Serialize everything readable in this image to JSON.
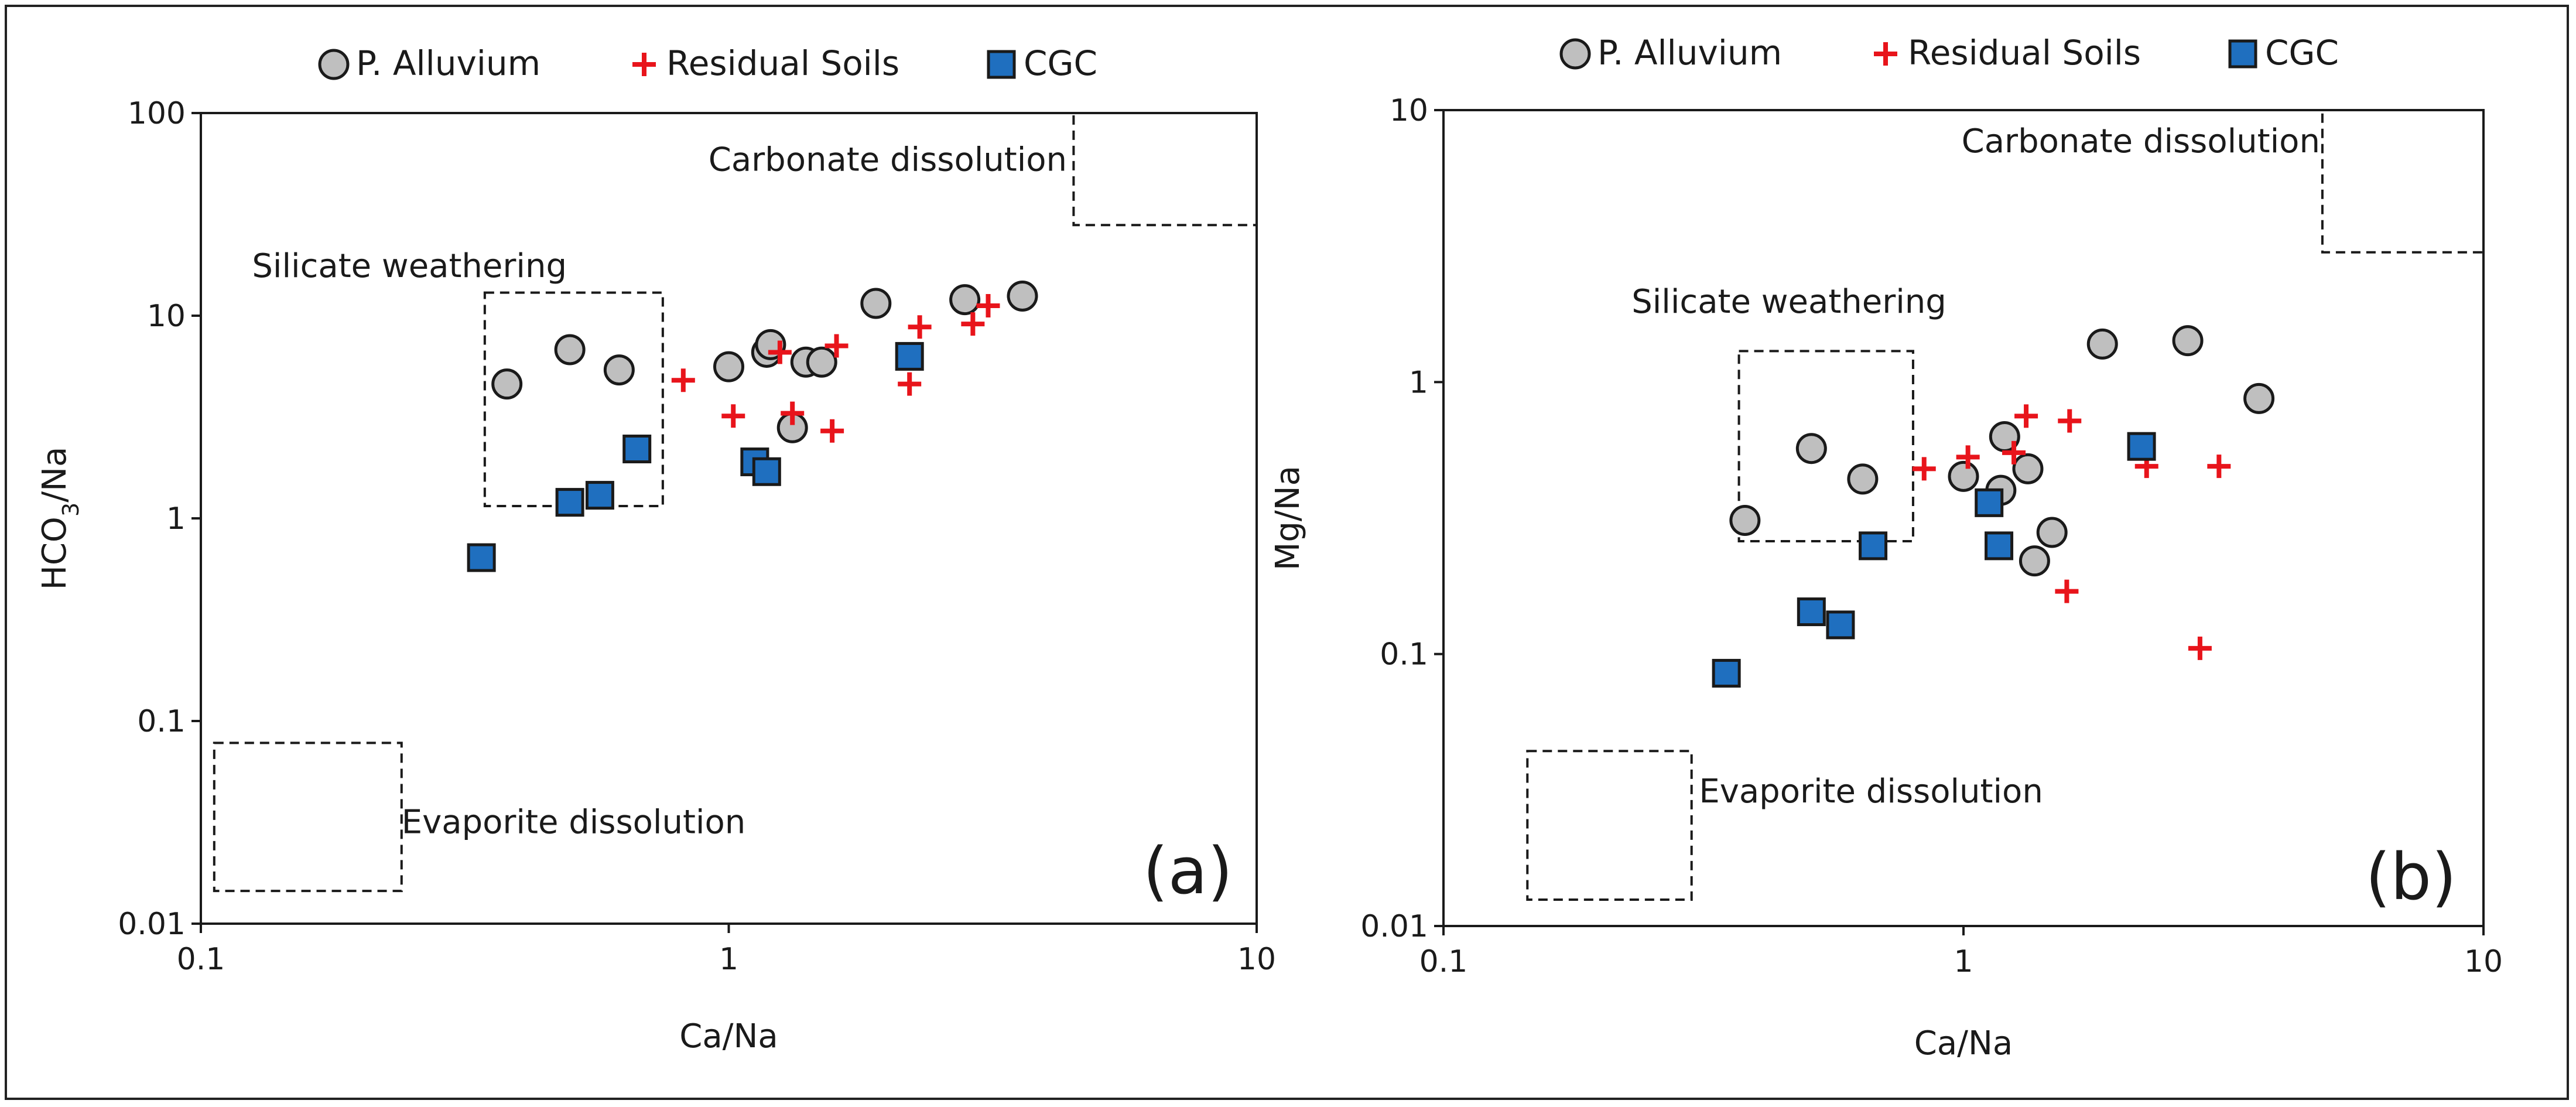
{
  "chart_data": [
    {
      "type": "scatter",
      "panel_label": "(a)",
      "xlabel": "Ca/Na",
      "ylabel_main": "HCO",
      "ylabel_sub": "3",
      "ylabel_tail": "/Na",
      "xscale": "log",
      "yscale": "log",
      "xlim": [
        0.1,
        10
      ],
      "ylim": [
        0.01,
        100
      ],
      "x_ticks": [
        {
          "value": 0.1,
          "label": "0.1"
        },
        {
          "value": 1,
          "label": "1"
        },
        {
          "value": 10,
          "label": "10"
        }
      ],
      "y_ticks": [
        {
          "value": 0.01,
          "label": "0.01"
        },
        {
          "value": 0.1,
          "label": "0.1"
        },
        {
          "value": 1,
          "label": "1"
        },
        {
          "value": 10,
          "label": "10"
        },
        {
          "value": 100,
          "label": "100"
        }
      ],
      "legend_position": "top-center",
      "series": [
        {
          "name": "P. Alluvium",
          "marker": "circle",
          "color": "#bfbfbf",
          "edge": "#1a1a1a",
          "points": [
            [
              0.38,
              4.6
            ],
            [
              0.5,
              6.8
            ],
            [
              0.62,
              5.4
            ],
            [
              1.0,
              5.6
            ],
            [
              1.18,
              6.6
            ],
            [
              1.2,
              7.2
            ],
            [
              1.32,
              2.8
            ],
            [
              1.4,
              5.9
            ],
            [
              1.5,
              5.9
            ],
            [
              1.9,
              11.5
            ],
            [
              2.8,
              12
            ],
            [
              3.6,
              12.5
            ]
          ]
        },
        {
          "name": "Residual Soils",
          "marker": "plus",
          "color": "#e8141b",
          "points": [
            [
              0.82,
              4.8
            ],
            [
              1.02,
              3.2
            ],
            [
              1.25,
              6.6
            ],
            [
              1.32,
              3.3
            ],
            [
              1.57,
              2.7
            ],
            [
              1.6,
              7.1
            ],
            [
              2.2,
              4.6
            ],
            [
              2.3,
              8.8
            ],
            [
              2.9,
              9.1
            ],
            [
              3.1,
              11.2
            ]
          ]
        },
        {
          "name": "CGC",
          "marker": "square",
          "color": "#1f6fbf",
          "edge": "#1a1a1a",
          "points": [
            [
              0.34,
              0.64
            ],
            [
              0.5,
              1.2
            ],
            [
              0.57,
              1.3
            ],
            [
              0.67,
              2.2
            ],
            [
              1.12,
              1.9
            ],
            [
              1.18,
              1.7
            ],
            [
              2.2,
              6.3
            ]
          ]
        }
      ],
      "annotations": [
        {
          "text": "Carbonate dissolution",
          "x": 2.0,
          "y": 52,
          "anchor": "middle"
        },
        {
          "text": "Silicate weathering",
          "x": 0.125,
          "y": 15.5,
          "anchor": "start"
        },
        {
          "text": "Evaporite dissolution",
          "x": 0.24,
          "y": 0.028,
          "anchor": "start"
        }
      ],
      "regions": [
        {
          "name": "carbonate-dissolution-box",
          "x": [
            4.5,
            10
          ],
          "y": [
            28,
            100
          ]
        },
        {
          "name": "silicate-weathering-box",
          "x": [
            0.345,
            0.75
          ],
          "y": [
            1.15,
            13
          ]
        },
        {
          "name": "evaporite-dissolution-box",
          "x": [
            0.106,
            0.24
          ],
          "y": [
            0.0145,
            0.078
          ]
        }
      ]
    },
    {
      "type": "scatter",
      "panel_label": "(b)",
      "xlabel": "Ca/Na",
      "ylabel_main": "Mg/Na",
      "ylabel_sub": "",
      "ylabel_tail": "",
      "xscale": "log",
      "yscale": "log",
      "xlim": [
        0.1,
        10
      ],
      "ylim": [
        0.01,
        10
      ],
      "x_ticks": [
        {
          "value": 0.1,
          "label": "0.1"
        },
        {
          "value": 1,
          "label": "1"
        },
        {
          "value": 10,
          "label": "10"
        }
      ],
      "y_ticks": [
        {
          "value": 0.01,
          "label": "0.01"
        },
        {
          "value": 0.1,
          "label": "0.1"
        },
        {
          "value": 1,
          "label": "1"
        },
        {
          "value": 10,
          "label": "10"
        }
      ],
      "legend_position": "top-center",
      "series": [
        {
          "name": "P. Alluvium",
          "marker": "circle",
          "color": "#bfbfbf",
          "edge": "#1a1a1a",
          "points": [
            [
              0.38,
              0.31
            ],
            [
              0.51,
              0.57
            ],
            [
              0.64,
              0.44
            ],
            [
              1.0,
              0.45
            ],
            [
              1.18,
              0.4
            ],
            [
              1.2,
              0.63
            ],
            [
              1.33,
              0.48
            ],
            [
              1.37,
              0.22
            ],
            [
              1.48,
              0.28
            ],
            [
              1.85,
              1.38
            ],
            [
              2.7,
              1.42
            ],
            [
              3.7,
              0.87
            ]
          ]
        },
        {
          "name": "Residual Soils",
          "marker": "plus",
          "color": "#e8141b",
          "points": [
            [
              0.84,
              0.48
            ],
            [
              1.02,
              0.53
            ],
            [
              1.25,
              0.55
            ],
            [
              1.32,
              0.75
            ],
            [
              1.58,
              0.17
            ],
            [
              1.6,
              0.72
            ],
            [
              2.25,
              0.49
            ],
            [
              2.85,
              0.105
            ],
            [
              3.1,
              0.49
            ]
          ]
        },
        {
          "name": "CGC",
          "marker": "square",
          "color": "#1f6fbf",
          "edge": "#1a1a1a",
          "points": [
            [
              0.35,
              0.085
            ],
            [
              0.51,
              0.143
            ],
            [
              0.58,
              0.128
            ],
            [
              0.67,
              0.25
            ],
            [
              1.12,
              0.36
            ],
            [
              1.17,
              0.25
            ],
            [
              2.2,
              0.58
            ]
          ]
        }
      ],
      "annotations": [
        {
          "text": "Carbonate dissolution",
          "x": 4.85,
          "y": 7.0,
          "anchor": "end"
        },
        {
          "text": "Silicate weathering",
          "x": 0.23,
          "y": 1.8,
          "anchor": "start"
        },
        {
          "text": "Evaporite dissolution",
          "x": 0.31,
          "y": 0.0285,
          "anchor": "start"
        }
      ],
      "regions": [
        {
          "name": "carbonate-dissolution-box",
          "x": [
            4.9,
            10
          ],
          "y": [
            3,
            10
          ]
        },
        {
          "name": "silicate-weathering-box",
          "x": [
            0.37,
            0.8
          ],
          "y": [
            0.26,
            1.3
          ]
        },
        {
          "name": "evaporite-dissolution-box",
          "x": [
            0.145,
            0.3
          ],
          "y": [
            0.0125,
            0.044
          ]
        }
      ]
    }
  ]
}
